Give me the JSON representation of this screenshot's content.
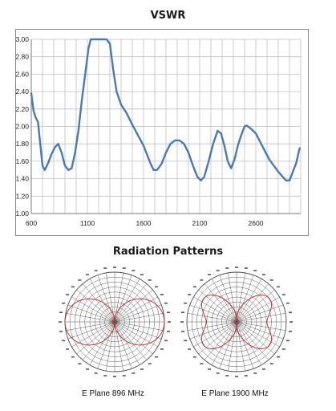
{
  "chart_data": [
    {
      "type": "line",
      "title": "VSWR",
      "xlabel": "",
      "ylabel": "",
      "xlim": [
        600,
        3000
      ],
      "ylim": [
        1.0,
        3.0
      ],
      "x_ticks": [
        "600",
        "1100",
        "1600",
        "2100",
        "2600"
      ],
      "y_ticks": [
        "1.00",
        "1.20",
        "1.40",
        "1.60",
        "1.80",
        "2.00",
        "2.20",
        "2.40",
        "2.60",
        "2.80",
        "3.00"
      ],
      "grid": true,
      "series": [
        {
          "color": "#4a79b8",
          "x": [
            600,
            620,
            640,
            660,
            680,
            700,
            720,
            750,
            780,
            810,
            840,
            870,
            900,
            930,
            960,
            990,
            1020,
            1050,
            1080,
            1110,
            1130,
            1180,
            1230,
            1270,
            1300,
            1330,
            1360,
            1400,
            1450,
            1500,
            1550,
            1600,
            1630,
            1660,
            1690,
            1720,
            1760,
            1800,
            1840,
            1880,
            1920,
            1960,
            2000,
            2040,
            2080,
            2110,
            2140,
            2180,
            2220,
            2260,
            2290,
            2320,
            2350,
            2380,
            2410,
            2440,
            2470,
            2500,
            2520,
            2560,
            2600,
            2640,
            2680,
            2720,
            2760,
            2800,
            2840,
            2870,
            2900,
            2930,
            2960,
            2990
          ],
          "values": [
            2.38,
            2.18,
            2.1,
            2.05,
            1.8,
            1.55,
            1.5,
            1.58,
            1.68,
            1.76,
            1.8,
            1.7,
            1.55,
            1.5,
            1.52,
            1.7,
            1.95,
            2.3,
            2.6,
            2.9,
            3.0,
            3.0,
            3.0,
            3.0,
            2.95,
            2.65,
            2.4,
            2.25,
            2.15,
            2.02,
            1.9,
            1.78,
            1.68,
            1.58,
            1.5,
            1.5,
            1.57,
            1.7,
            1.8,
            1.84,
            1.84,
            1.8,
            1.7,
            1.55,
            1.42,
            1.38,
            1.42,
            1.6,
            1.8,
            1.95,
            1.92,
            1.78,
            1.6,
            1.52,
            1.62,
            1.78,
            1.9,
            2.0,
            2.01,
            1.97,
            1.92,
            1.82,
            1.72,
            1.62,
            1.55,
            1.48,
            1.42,
            1.38,
            1.38,
            1.48,
            1.58,
            1.75
          ]
        }
      ]
    },
    {
      "type": "polar",
      "title": "Radiation Patterns",
      "caption": "E Plane 896 MHz"
    },
    {
      "type": "polar",
      "title": "",
      "caption": "E Plane 1900 MHz"
    }
  ],
  "colors": {
    "line": "#4a79b8",
    "grid": "#bfbfbf",
    "pattern": "#cc2222",
    "polar_grid": "#4d4d4d"
  }
}
